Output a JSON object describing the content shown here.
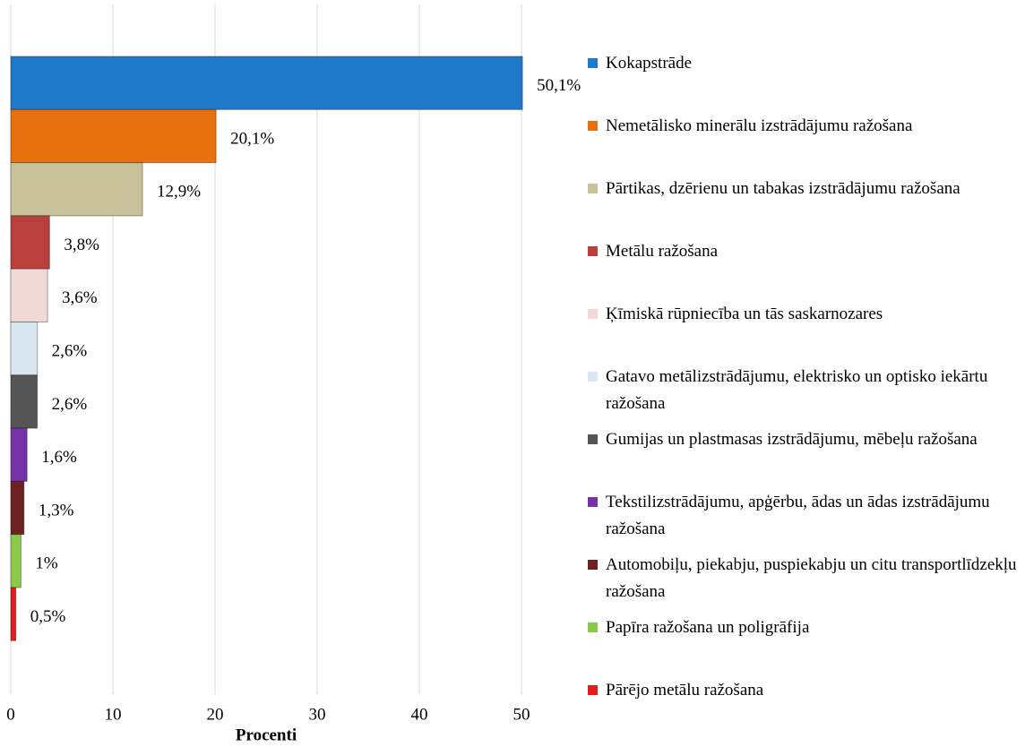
{
  "chart_data": {
    "type": "bar",
    "orientation": "horizontal",
    "x_label": "Procenti",
    "categories": [
      "Kokapstrāde",
      "Nemetālisko minerālu izstrādājumu ražošana",
      "Pārtikas, dzērienu un tabakas izstrādājumu ražošana",
      "Metālu ražošana",
      "Ķīmiskā rūpniecība un tās saskarnozares",
      "Gatavo metālizstrādājumu, elektrisko un optisko iekārtu ražošana",
      "Gumijas un plastmasas izstrādājumu, mēbeļu ražošana",
      "Tekstilizstrādājumu, apģērbu, ādas un ādas izstrādājumu ražošana",
      "Automobiļu, piekabju, puspiekabju un citu transportlīdzekļu ražošana",
      "Papīra ražošana un poligrāfija",
      "Pārējo metālu ražošana"
    ],
    "values": [
      50.1,
      20.1,
      12.9,
      3.8,
      3.6,
      2.6,
      2.6,
      1.6,
      1.3,
      1,
      0.5
    ],
    "value_labels": [
      "50,1%",
      "20,1%",
      "12,9%",
      "3,8%",
      "3,6%",
      "2,6%",
      "2,6%",
      "1,6%",
      "1,3%",
      "1%",
      "0,5%"
    ],
    "colors": [
      "#1f78c8",
      "#e8700e",
      "#c8c19a",
      "#b9403c",
      "#f2d9d8",
      "#d9e8f2",
      "#555555",
      "#7434a8",
      "#6b2220",
      "#8cc84a",
      "#e21b1b"
    ],
    "xlim": [
      0,
      50
    ],
    "xticks": [
      0,
      10,
      20,
      30,
      40,
      50
    ],
    "grid": true
  }
}
